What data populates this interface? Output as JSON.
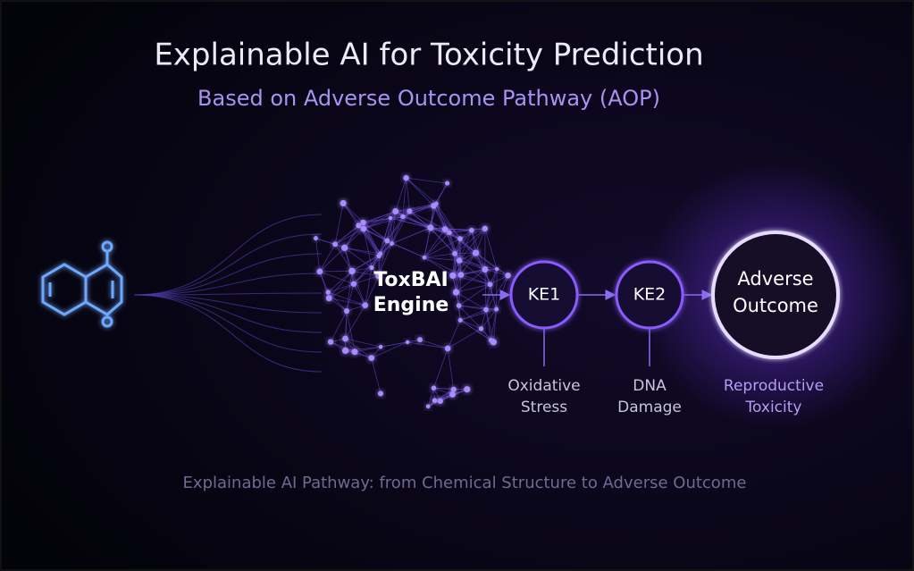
{
  "header": {
    "title": "Explainable AI for Toxicity Prediction",
    "subtitle": "Based on Adverse Outcome Pathway (AOP)"
  },
  "engine": {
    "label": [
      "ToxBAI",
      "Engine"
    ]
  },
  "nodes": [
    {
      "label": [
        "KE1"
      ],
      "caption": [
        "Oxidative",
        "Stress"
      ]
    },
    {
      "label": [
        "KE2"
      ],
      "caption": [
        "DNA",
        "Damage"
      ]
    },
    {
      "label": [
        "Adverse",
        "Outcome"
      ],
      "caption": [
        "Reproductive",
        "Toxicity"
      ]
    }
  ],
  "footer": {
    "caption": "Explainable AI Pathway: from Chemical Structure to Adverse Outcome"
  }
}
